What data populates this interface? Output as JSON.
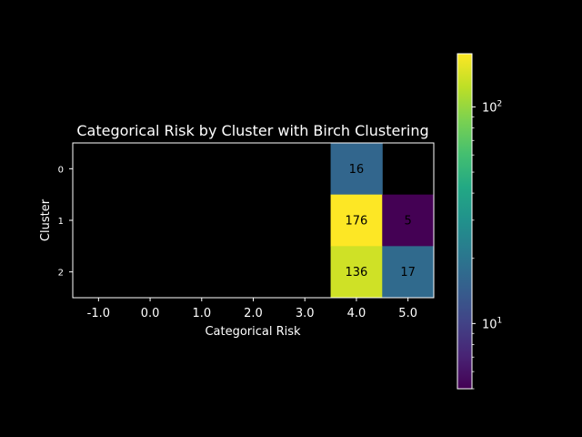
{
  "chart_data": {
    "type": "heatmap",
    "title": "Categorical Risk by Cluster with Birch Clustering",
    "xlabel": "Categorical Risk",
    "ylabel": "Cluster",
    "x_categories": [
      "-1.0",
      "0.0",
      "1.0",
      "2.0",
      "3.0",
      "4.0",
      "5.0"
    ],
    "y_categories": [
      "0",
      "1",
      "2"
    ],
    "cells": [
      {
        "x": "4.0",
        "y": "0",
        "value": 16,
        "label": "16"
      },
      {
        "x": "4.0",
        "y": "1",
        "value": 176,
        "label": "176"
      },
      {
        "x": "5.0",
        "y": "1",
        "value": 5,
        "label": "5"
      },
      {
        "x": "4.0",
        "y": "2",
        "value": 136,
        "label": "136"
      },
      {
        "x": "5.0",
        "y": "2",
        "value": 17,
        "label": "17"
      }
    ],
    "empty_color": "#000000",
    "colorbar": {
      "scale": "log",
      "colormap": "viridis",
      "range": [
        5,
        176
      ],
      "ticks": [
        {
          "value": 10,
          "base": "10",
          "exp": "1"
        },
        {
          "value": 100,
          "base": "10",
          "exp": "2"
        }
      ]
    },
    "grid": false
  }
}
